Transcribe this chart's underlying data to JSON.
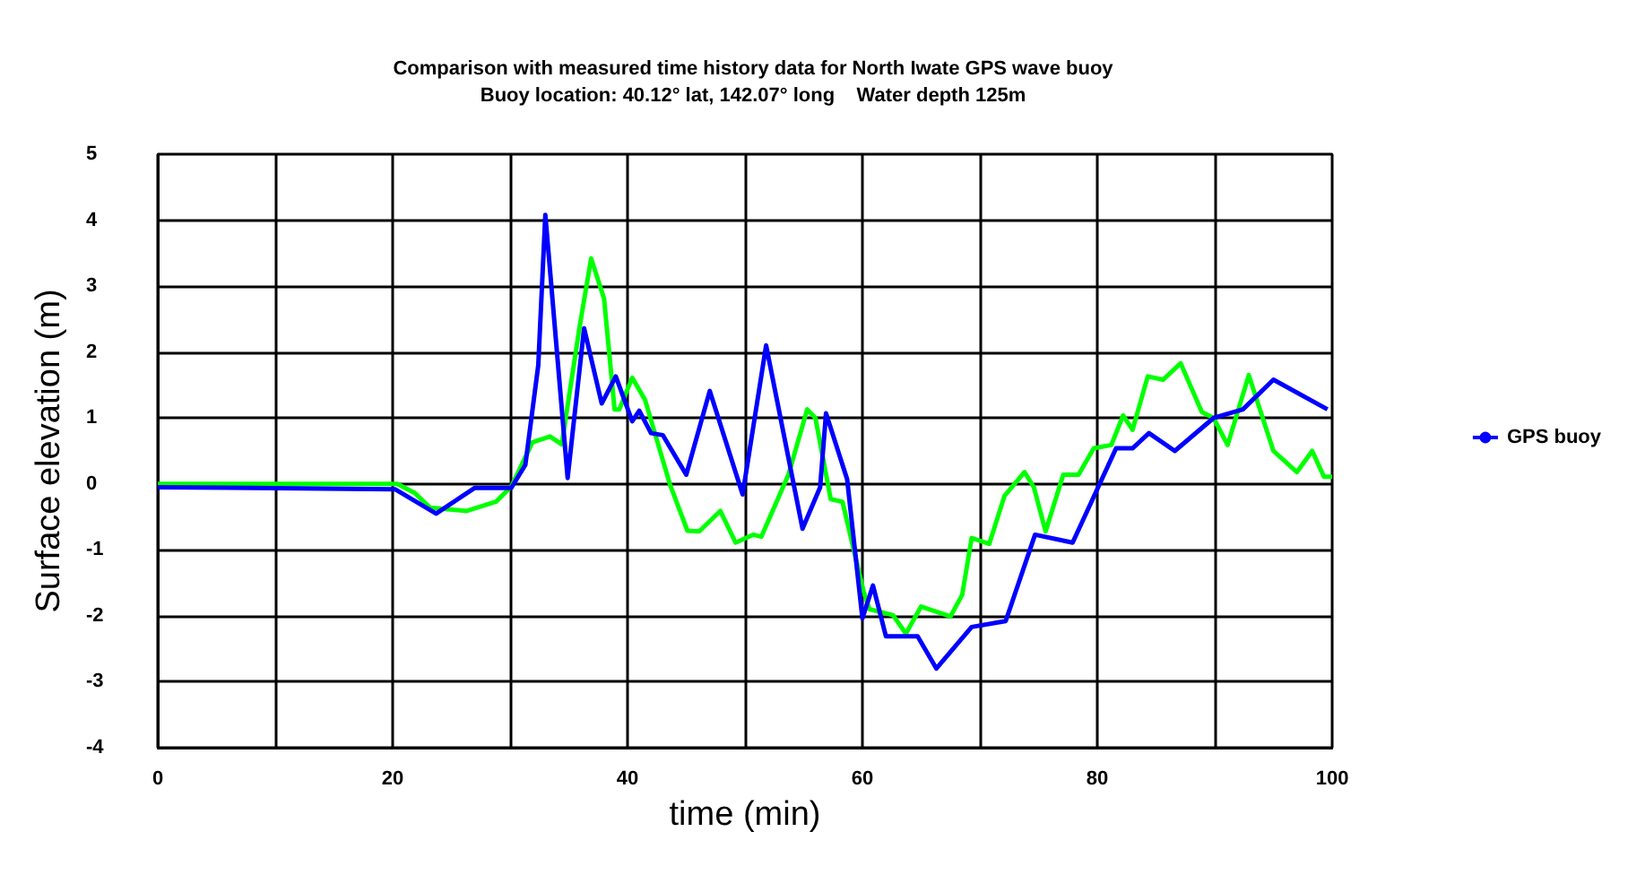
{
  "chart_data": {
    "type": "line",
    "title": "Comparison with measured time history data for North Iwate GPS wave buoy",
    "subtitle": "Buoy location: 40.12° lat, 142.07° long    Water depth 125m",
    "xlabel": "time (min)",
    "ylabel": "Surface elevation (m)",
    "xlim": [
      0,
      100
    ],
    "xticks": [
      0,
      {
        "value": 10,
        "label": null
      },
      20,
      {
        "value": 30,
        "label": null
      },
      40,
      {
        "value": 50,
        "label": null
      },
      60,
      {
        "value": 70,
        "label": null
      },
      80,
      {
        "value": 90,
        "label": null
      },
      100
    ],
    "ylim": [
      -4,
      5
    ],
    "yticks": [
      -4,
      -3,
      -2,
      -1,
      0,
      1,
      2,
      3,
      4,
      5
    ],
    "grid": true,
    "legend": "right",
    "series": [
      {
        "color": "#00ff00",
        "x": [
          0,
          20.4,
          21.9,
          23.2,
          26.3,
          28.8,
          30.1,
          31.9,
          33.4,
          34.4,
          35.9,
          36.9,
          38.0,
          38.9,
          39.3,
          40.4,
          41.5,
          43.6,
          45.1,
          46.1,
          47.9,
          49.2,
          50.7,
          51.4,
          53.7,
          55.3,
          56.0,
          57.3,
          58.3,
          60.1,
          60.6,
          62.6,
          63.7,
          65.0,
          67.5,
          68.5,
          69.3,
          70.8,
          72.1,
          73.8,
          74.6,
          75.6,
          77.1,
          78.4,
          79.7,
          81.2,
          82.2,
          83.0,
          84.3,
          85.6,
          87.1,
          88.9,
          89.9,
          91.1,
          92.9,
          95.0,
          97.0,
          98.3,
          99.3,
          100
        ],
        "values": [
          0,
          0,
          -0.14,
          -0.36,
          -0.41,
          -0.27,
          -0.04,
          0.63,
          0.72,
          0.6,
          2.36,
          3.42,
          2.81,
          1.13,
          1.13,
          1.61,
          1.27,
          0,
          -0.71,
          -0.72,
          -0.41,
          -0.89,
          -0.77,
          -0.8,
          0.14,
          1.13,
          1.0,
          -0.23,
          -0.27,
          -1.63,
          -1.9,
          -1.99,
          -2.27,
          -1.86,
          -2.01,
          -1.68,
          -0.82,
          -0.91,
          -0.18,
          0.18,
          -0.05,
          -0.72,
          0.14,
          0.14,
          0.54,
          0.59,
          1.04,
          0.82,
          1.63,
          1.58,
          1.83,
          1.09,
          1.0,
          0.59,
          1.65,
          0.5,
          0.18,
          0.5,
          0.11,
          0.11
        ]
      },
      {
        "name": "GPS buoy",
        "color": "#0000ff",
        "x": [
          0,
          20.2,
          23.7,
          27.0,
          30.1,
          31.3,
          32.4,
          33.0,
          34.9,
          36.3,
          37.8,
          39.0,
          40.4,
          41.0,
          42.0,
          43.0,
          45.0,
          47.0,
          49.8,
          51.8,
          54.9,
          56.4,
          56.9,
          58.7,
          60.0,
          60.9,
          62.0,
          64.7,
          66.3,
          69.3,
          72.2,
          74.7,
          77.9,
          81.6,
          83.0,
          84.4,
          86.6,
          89.9,
          92.4,
          95.0,
          99.6
        ],
        "values": [
          -0.05,
          -0.08,
          -0.45,
          -0.06,
          -0.06,
          0.29,
          1.8,
          4.08,
          0.09,
          2.36,
          1.22,
          1.63,
          0.95,
          1.11,
          0.77,
          0.74,
          0.14,
          1.41,
          -0.16,
          2.1,
          -0.68,
          -0.05,
          1.07,
          0.07,
          -2.04,
          -1.54,
          -2.31,
          -2.31,
          -2.8,
          -2.17,
          -2.08,
          -0.77,
          -0.89,
          0.54,
          0.54,
          0.77,
          0.5,
          1.0,
          1.13,
          1.58,
          1.13
        ]
      }
    ]
  }
}
